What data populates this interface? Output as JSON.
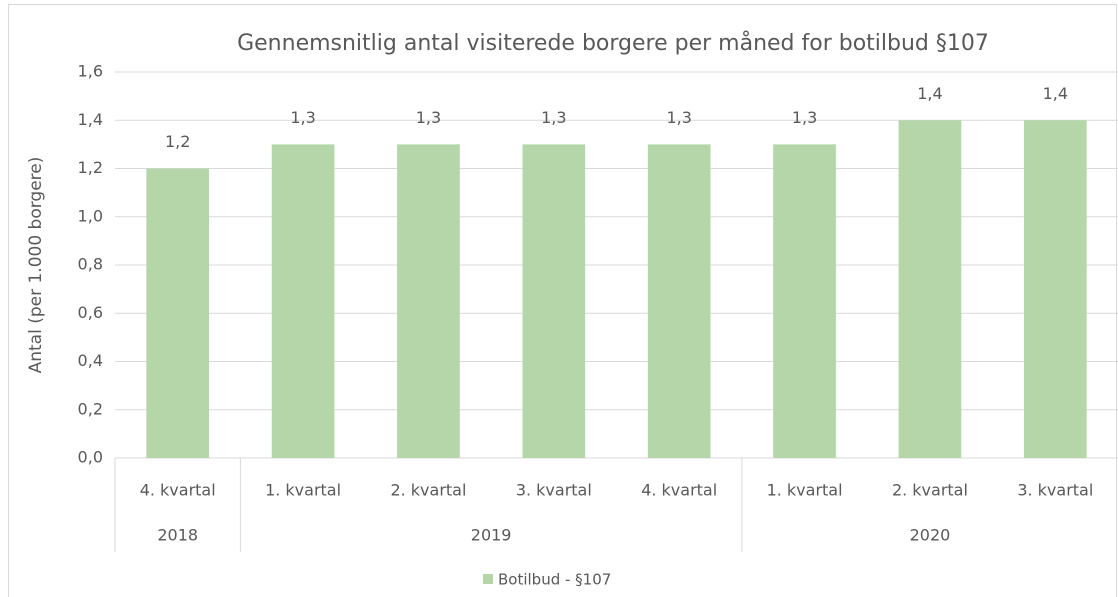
{
  "chart_data": {
    "type": "bar",
    "title": "Gennemsnitlig antal visiterede borgere per måned for botilbud  §107",
    "y_axis_label": "Antal (per 1.000 borgere)",
    "categories": [
      "4. kvartal",
      "1. kvartal",
      "2. kvartal",
      "3. kvartal",
      "4. kvartal",
      "1. kvartal",
      "2. kvartal",
      "3. kvartal"
    ],
    "groups": [
      {
        "label": "2018",
        "count": 1
      },
      {
        "label": "2019",
        "count": 4
      },
      {
        "label": "2020",
        "count": 3
      }
    ],
    "series": [
      {
        "name": "Botilbud - §107",
        "color": "#b4d6a9",
        "values": [
          1.2,
          1.3,
          1.3,
          1.3,
          1.3,
          1.3,
          1.4,
          1.4
        ],
        "value_labels": [
          "1,2",
          "1,3",
          "1,3",
          "1,3",
          "1,3",
          "1,3",
          "1,4",
          "1,4"
        ]
      }
    ],
    "ylim": [
      0,
      1.6
    ],
    "yticks": [
      {
        "value": 0,
        "label": "0,0"
      },
      {
        "value": 0.2,
        "label": "0,2"
      },
      {
        "value": 0.4,
        "label": "0,4"
      },
      {
        "value": 0.6,
        "label": "0,6"
      },
      {
        "value": 0.8,
        "label": "0,8"
      },
      {
        "value": 1.0,
        "label": "1,0"
      },
      {
        "value": 1.2,
        "label": "1,2"
      },
      {
        "value": 1.4,
        "label": "1,4"
      },
      {
        "value": 1.6,
        "label": "1,6"
      }
    ],
    "grid": true,
    "legend": "bottom"
  }
}
